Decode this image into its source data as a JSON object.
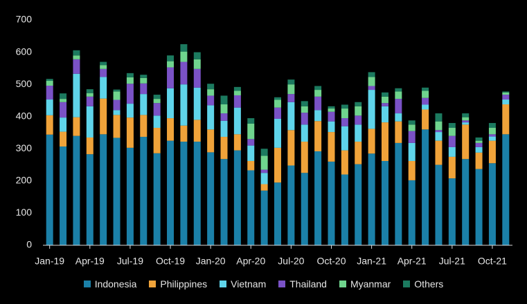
{
  "chart_data": {
    "type": "stacked-bar",
    "categories": [
      "Jan-19",
      null,
      null,
      "Apr-19",
      null,
      null,
      "Jul-19",
      null,
      null,
      "Oct-19",
      null,
      null,
      "Jan-20",
      null,
      null,
      "Apr-20",
      null,
      null,
      "Jul-20",
      null,
      null,
      "Oct-20",
      null,
      null,
      "Jan-21",
      null,
      null,
      "Apr-21",
      null,
      null,
      "Jul-21",
      null,
      null,
      "Oct-21",
      null
    ],
    "ylim": [
      0,
      700
    ],
    "yticks": [
      0,
      100,
      200,
      300,
      400,
      500,
      600,
      700
    ],
    "series": [
      {
        "name": "Indonesia",
        "color": "#1b80a8",
        "values": [
          344,
          307,
          340,
          283,
          345,
          334,
          303,
          337,
          286,
          325,
          322,
          322,
          289,
          268,
          295,
          233,
          170,
          195,
          248,
          225,
          292,
          260,
          220,
          252,
          285,
          262,
          318,
          202,
          360,
          250,
          208,
          268,
          237,
          255,
          345
        ]
      },
      {
        "name": "Philippines",
        "color": "#f0a33a",
        "values": [
          60,
          46,
          58,
          52,
          111,
          71,
          94,
          68,
          79,
          70,
          50,
          68,
          71,
          69,
          50,
          29,
          20,
          108,
          110,
          97,
          94,
          92,
          75,
          70,
          77,
          120,
          67,
          60,
          62,
          75,
          67,
          107,
          51,
          70,
          93
        ]
      },
      {
        "name": "Vietnam",
        "color": "#5fd4ea",
        "values": [
          49,
          44,
          135,
          97,
          67,
          15,
          43,
          65,
          38,
          93,
          128,
          100,
          75,
          50,
          83,
          48,
          35,
          90,
          87,
          53,
          34,
          33,
          75,
          53,
          121,
          50,
          25,
          56,
          15,
          27,
          30,
          7,
          17,
          13,
          15
        ]
      },
      {
        "name": "Thailand",
        "color": "#7a52c6",
        "values": [
          43,
          48,
          45,
          30,
          25,
          32,
          62,
          33,
          39,
          65,
          70,
          58,
          30,
          23,
          38,
          20,
          10,
          35,
          25,
          37,
          42,
          30,
          25,
          28,
          12,
          10,
          45,
          37,
          21,
          6,
          35,
          6,
          13,
          7,
          15
        ]
      },
      {
        "name": "Myanmar",
        "color": "#6fd48d",
        "values": [
          15,
          10,
          12,
          11,
          12,
          26,
          20,
          17,
          13,
          19,
          32,
          30,
          20,
          28,
          14,
          48,
          43,
          24,
          30,
          20,
          21,
          10,
          30,
          29,
          28,
          20,
          23,
          20,
          22,
          27,
          25,
          10,
          7,
          20,
          7
        ]
      },
      {
        "name": "Others",
        "color": "#1c7a5f",
        "values": [
          6,
          17,
          16,
          12,
          10,
          6,
          13,
          10,
          13,
          18,
          23,
          22,
          17,
          27,
          12,
          17,
          22,
          8,
          15,
          16,
          12,
          7,
          12,
          13,
          15,
          13,
          10,
          13,
          10,
          25,
          15,
          12,
          10,
          15,
          3
        ]
      }
    ]
  }
}
